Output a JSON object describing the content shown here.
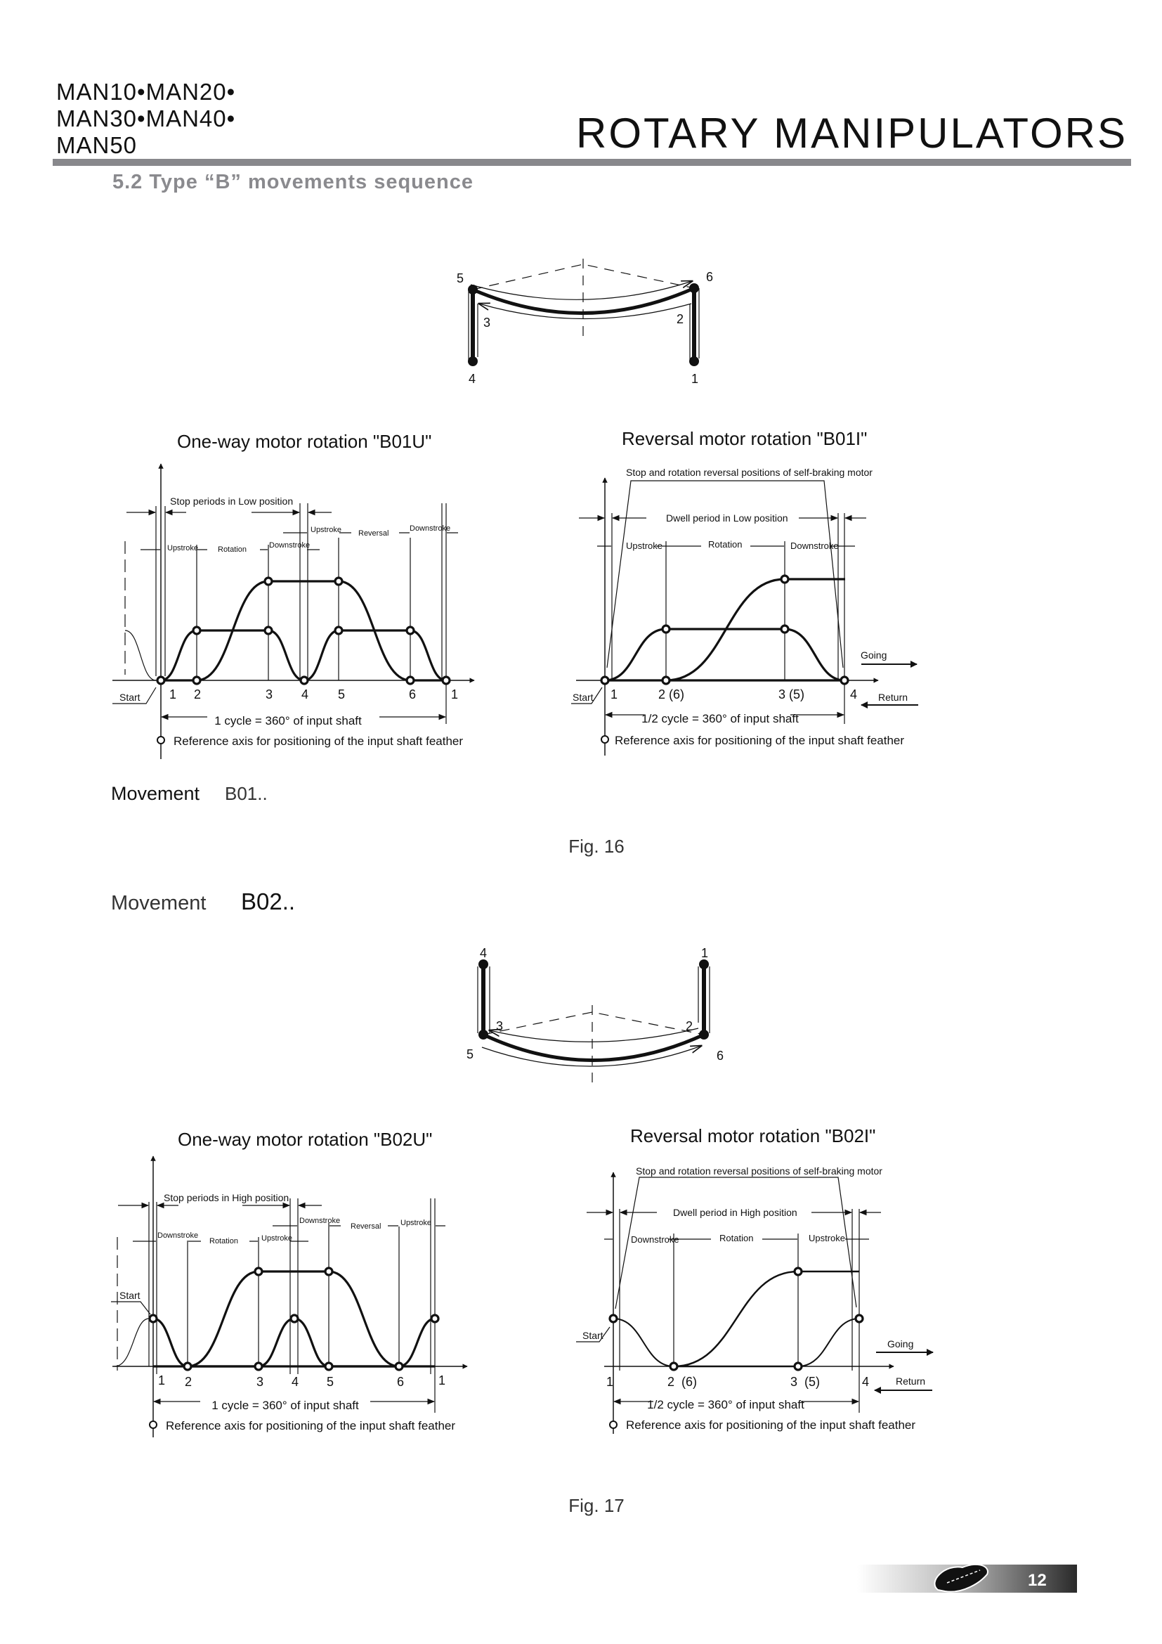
{
  "header": {
    "models_line1": "MAN10•MAN20•",
    "models_line2": "MAN30•MAN40•",
    "models_line3": "MAN50",
    "title": "ROTARY MANIPULATORS",
    "section": "5.2  Type “B” movements sequence",
    "rule_color": "#88888c"
  },
  "arm_b01": {
    "labels": [
      "1",
      "2",
      "3",
      "4",
      "5",
      "6"
    ]
  },
  "arm_b02": {
    "labels": [
      "1",
      "2",
      "3",
      "4",
      "5",
      "6"
    ]
  },
  "b01u": {
    "title": "One-way motor rotation  \"B01U\"",
    "stop_periods": "Stop periods in Low position",
    "row_upper": [
      "Upstroke",
      "Reversal",
      "Downstroke"
    ],
    "row_lower": [
      "Upstroke",
      "Rotation",
      "Downstroke"
    ],
    "positions": [
      "1",
      "2",
      "3",
      "4",
      "5",
      "6",
      "1"
    ],
    "start": "Start",
    "cycle": "1 cycle = 360° of input shaft",
    "reference": "Reference axis for positioning of the input shaft feather"
  },
  "b01i": {
    "title": "Reversal motor rotation  \"B01I\"",
    "stop_note": "Stop and rotation reversal positions of self-braking motor",
    "dwell": "Dwell period in Low position",
    "row": [
      "Upstroke",
      "Rotation",
      "Downstroke"
    ],
    "positions": [
      "1",
      "2 (6)",
      "3 (5)",
      "4"
    ],
    "start": "Start",
    "going": "Going",
    "return": "Return",
    "cycle": "1/2 cycle = 360° of input shaft",
    "reference": "Reference axis for positioning of the input shaft feather"
  },
  "movement_b01": {
    "label": "Movement",
    "code": "B01.."
  },
  "fig16": "Fig. 16",
  "movement_b02": {
    "label": "Movement",
    "code": "B02.."
  },
  "b02u": {
    "title": "One-way motor rotation  \"B02U\"",
    "stop_periods": "Stop periods in High position",
    "row_upper": [
      "Downstroke",
      "Reversal",
      "Upstroke"
    ],
    "row_lower": [
      "Downstroke",
      "Rotation",
      "Upstroke"
    ],
    "positions": [
      "1",
      "2",
      "3",
      "4",
      "5",
      "6",
      "1"
    ],
    "start": "Start",
    "cycle": "1 cycle = 360° of input shaft",
    "reference": "Reference axis for positioning of the input shaft feather"
  },
  "b02i": {
    "title": "Reversal motor rotation  \"B02I\"",
    "stop_note": "Stop and rotation reversal positions of self-braking motor",
    "dwell": "Dwell period in High position",
    "row": [
      "Downstroke",
      "Rotation",
      "Upstroke"
    ],
    "positions": [
      "1",
      "2  (6)",
      "3  (5)",
      "4"
    ],
    "start": "Start",
    "going": "Going",
    "return": "Return",
    "cycle": "1/2 cycle = 360° of input shaft",
    "reference": "Reference axis for positioning of the input shaft feather"
  },
  "fig17": "Fig. 17",
  "footer": {
    "page_number": "12",
    "logo": "company-logo"
  }
}
